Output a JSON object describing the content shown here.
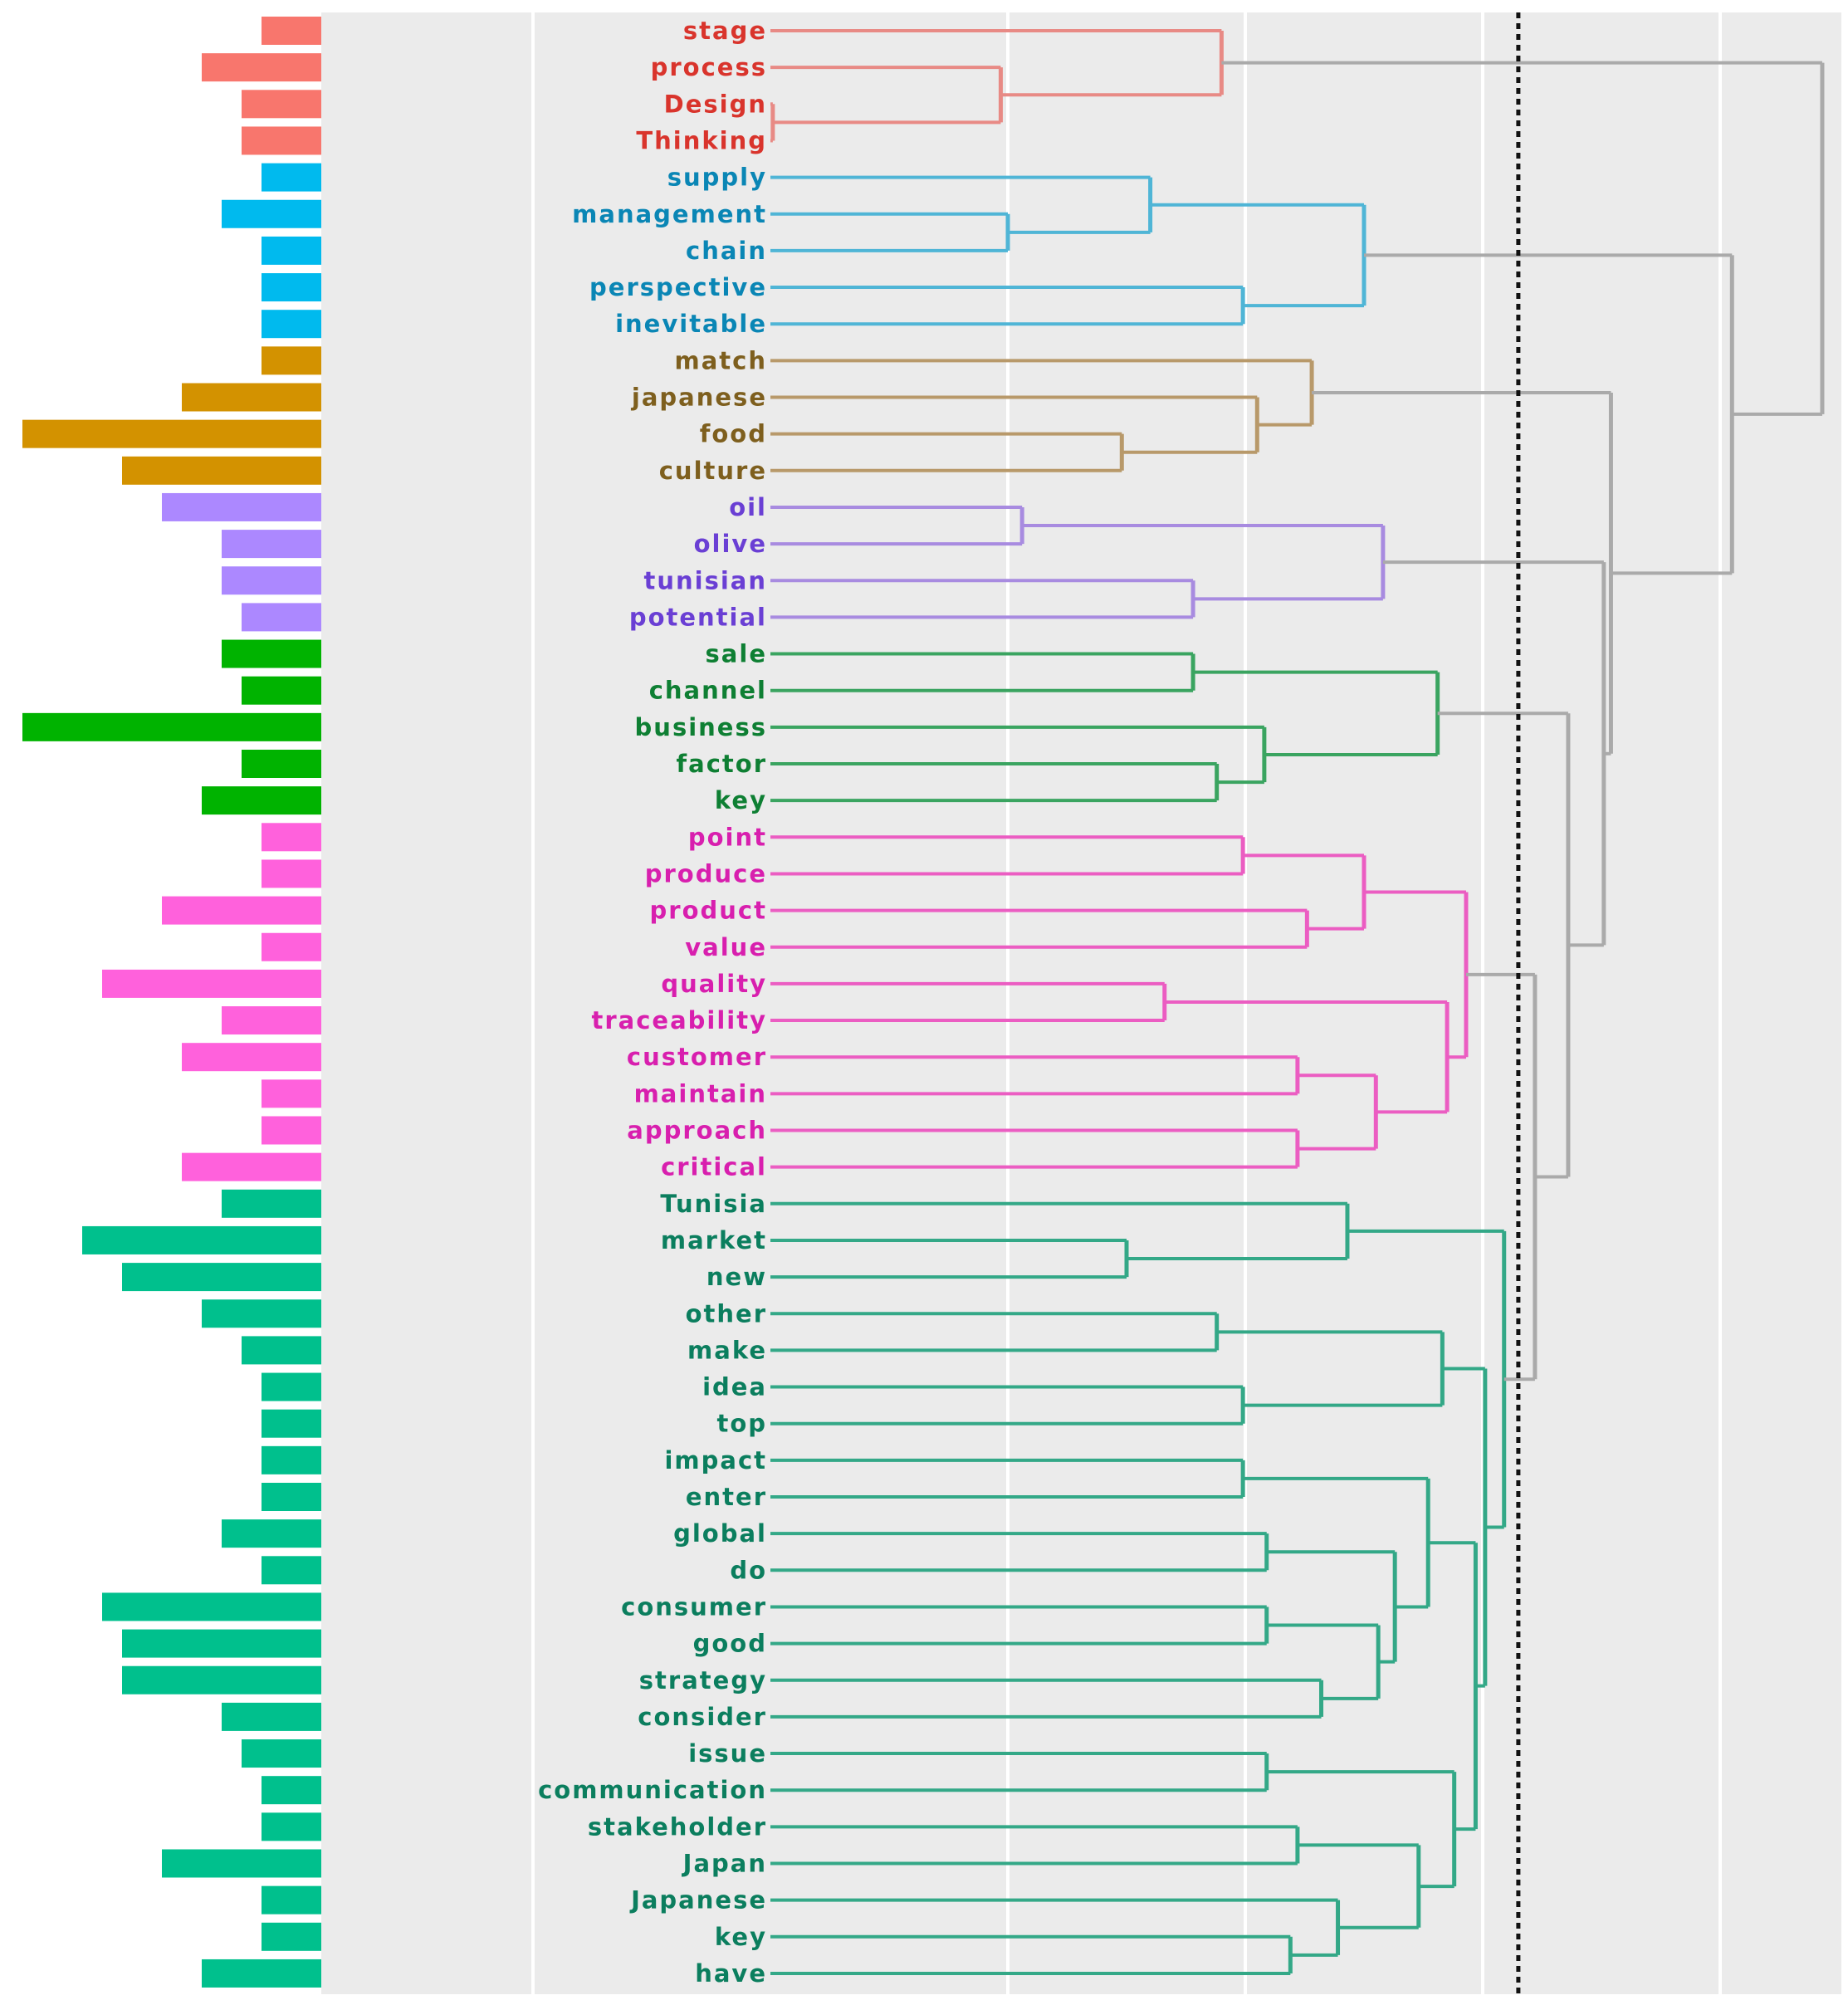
{
  "chart_data": {
    "type": "dendrogram",
    "title": "",
    "leaves": [
      "stage",
      "process",
      "Design",
      "Thinking",
      "supply",
      "management",
      "chain",
      "perspective",
      "inevitable",
      "match",
      "japanese",
      "food",
      "culture",
      "oil",
      "olive",
      "tunisian",
      "potential",
      "sale",
      "channel",
      "business",
      "factor",
      "key",
      "point",
      "produce",
      "product",
      "value",
      "quality",
      "traceability",
      "customer",
      "maintain",
      "approach",
      "critical",
      "Tunisia",
      "market",
      "new",
      "other",
      "make",
      "idea",
      "top",
      "impact",
      "enter",
      "global",
      "do",
      "consumer",
      "good",
      "strategy",
      "consider",
      "issue",
      "communication",
      "stakeholder",
      "Japan",
      "Japanese",
      "key",
      "have"
    ],
    "bar_values": [
      3,
      6,
      4,
      4,
      3,
      5,
      3,
      3,
      3,
      3,
      7,
      15,
      10,
      8,
      5,
      5,
      4,
      5,
      4,
      15,
      4,
      6,
      3,
      3,
      8,
      3,
      11,
      5,
      7,
      3,
      3,
      7,
      5,
      12,
      10,
      6,
      4,
      3,
      3,
      3,
      3,
      5,
      3,
      11,
      10,
      10,
      5,
      4,
      3,
      3,
      8,
      3,
      3,
      6
    ],
    "clusters": [
      {
        "name": "cluster-1",
        "start": 0,
        "end": 3,
        "bar": "#F8766D",
        "label": "#D9342C",
        "link": "#E88A85"
      },
      {
        "name": "cluster-2",
        "start": 4,
        "end": 8,
        "bar": "#00BAEE",
        "label": "#0A86B5",
        "link": "#4FB5D6"
      },
      {
        "name": "cluster-3",
        "start": 9,
        "end": 12,
        "bar": "#D39200",
        "label": "#7E5F1E",
        "link": "#B8996A"
      },
      {
        "name": "cluster-4",
        "start": 13,
        "end": 16,
        "bar": "#AC88FF",
        "label": "#6A3FD4",
        "link": "#A88BE0"
      },
      {
        "name": "cluster-5",
        "start": 17,
        "end": 21,
        "bar": "#00B300",
        "label": "#0E7F33",
        "link": "#3AA460"
      },
      {
        "name": "cluster-6",
        "start": 22,
        "end": 31,
        "bar": "#FF61DC",
        "label": "#D81FAE",
        "link": "#EB5DC2"
      },
      {
        "name": "cluster-7",
        "start": 32,
        "end": 53,
        "bar": "#00C08D",
        "label": "#0B7E5E",
        "link": "#33A887"
      }
    ],
    "above_cut_color": "#AAAAAA",
    "cut_height": 3.15,
    "height_gridlines": [
      -1,
      1,
      2,
      3,
      4
    ],
    "tree": {
      "h": 4.43,
      "c": [
        {
          "h": 1.9,
          "c": [
            0,
            {
              "h": 0.97,
              "c": [
                1,
                {
                  "h": 0.01,
                  "c": [
                    2,
                    3
                  ]
                }
              ]
            }
          ]
        },
        {
          "h": 4.05,
          "c": [
            {
              "h": 2.5,
              "c": [
                {
                  "h": 1.6,
                  "c": [
                    4,
                    {
                      "h": 1.0,
                      "c": [
                        5,
                        6
                      ]
                    }
                  ]
                },
                {
                  "h": 1.99,
                  "c": [
                    7,
                    8
                  ]
                }
              ]
            },
            {
              "h": 3.54,
              "c": [
                {
                  "h": 2.28,
                  "c": [
                    9,
                    {
                      "h": 2.05,
                      "c": [
                        10,
                        {
                          "h": 1.48,
                          "c": [
                            11,
                            12
                          ]
                        }
                      ]
                    }
                  ]
                },
                {
                  "h": 3.51,
                  "c": [
                    {
                      "h": 2.58,
                      "c": [
                        {
                          "h": 1.06,
                          "c": [
                            13,
                            14
                          ]
                        },
                        {
                          "h": 1.78,
                          "c": [
                            15,
                            16
                          ]
                        }
                      ]
                    },
                    {
                      "h": 3.36,
                      "c": [
                        {
                          "h": 2.81,
                          "c": [
                            {
                              "h": 1.78,
                              "c": [
                                17,
                                18
                              ]
                            },
                            {
                              "h": 2.08,
                              "c": [
                                19,
                                {
                                  "h": 1.88,
                                  "c": [
                                    20,
                                    21
                                  ]
                                }
                              ]
                            }
                          ]
                        },
                        {
                          "h": 3.22,
                          "c": [
                            {
                              "h": 2.93,
                              "c": [
                                {
                                  "h": 2.5,
                                  "c": [
                                    {
                                      "h": 1.99,
                                      "c": [
                                        22,
                                        23
                                      ]
                                    },
                                    {
                                      "h": 2.26,
                                      "c": [
                                        24,
                                        25
                                      ]
                                    }
                                  ]
                                },
                                {
                                  "h": 2.85,
                                  "c": [
                                    {
                                      "h": 1.66,
                                      "c": [
                                        26,
                                        27
                                      ]
                                    },
                                    {
                                      "h": 2.55,
                                      "c": [
                                        {
                                          "h": 2.22,
                                          "c": [
                                            28,
                                            29
                                          ]
                                        },
                                        {
                                          "h": 2.22,
                                          "c": [
                                            30,
                                            31
                                          ]
                                        }
                                      ]
                                    }
                                  ]
                                }
                              ]
                            },
                            {
                              "h": 3.09,
                              "c": [
                                {
                                  "h": 2.43,
                                  "c": [
                                    32,
                                    {
                                      "h": 1.5,
                                      "c": [
                                        33,
                                        34
                                      ]
                                    }
                                  ]
                                },
                                {
                                  "h": 3.01,
                                  "c": [
                                    {
                                      "h": 2.83,
                                      "c": [
                                        {
                                          "h": 1.88,
                                          "c": [
                                            35,
                                            36
                                          ]
                                        },
                                        {
                                          "h": 1.99,
                                          "c": [
                                            37,
                                            38
                                          ]
                                        }
                                      ]
                                    },
                                    {
                                      "h": 2.97,
                                      "c": [
                                        {
                                          "h": 2.77,
                                          "c": [
                                            {
                                              "h": 1.99,
                                              "c": [
                                                39,
                                                40
                                              ]
                                            },
                                            {
                                              "h": 2.63,
                                              "c": [
                                                {
                                                  "h": 2.09,
                                                  "c": [
                                                    41,
                                                    42
                                                  ]
                                                },
                                                {
                                                  "h": 2.56,
                                                  "c": [
                                                    {
                                                      "h": 2.09,
                                                      "c": [
                                                        43,
                                                        44
                                                      ]
                                                    },
                                                    {
                                                      "h": 2.32,
                                                      "c": [
                                                        45,
                                                        46
                                                      ]
                                                    }
                                                  ]
                                                }
                                              ]
                                            }
                                          ]
                                        },
                                        {
                                          "h": 2.88,
                                          "c": [
                                            {
                                              "h": 2.09,
                                              "c": [
                                                47,
                                                48
                                              ]
                                            },
                                            {
                                              "h": 2.73,
                                              "c": [
                                                {
                                                  "h": 2.22,
                                                  "c": [
                                                    49,
                                                    50
                                                  ]
                                                },
                                                {
                                                  "h": 2.39,
                                                  "c": [
                                                    51,
                                                    {
                                                      "h": 2.19,
                                                      "c": [
                                                        52,
                                                        53
                                                      ]
                                                    }
                                                  ]
                                                }
                                              ]
                                            }
                                          ]
                                        }
                                      ]
                                    }
                                  ]
                                }
                              ]
                            }
                          ]
                        }
                      ]
                    }
                  ]
                }
              ]
            }
          ]
        }
      ]
    }
  }
}
